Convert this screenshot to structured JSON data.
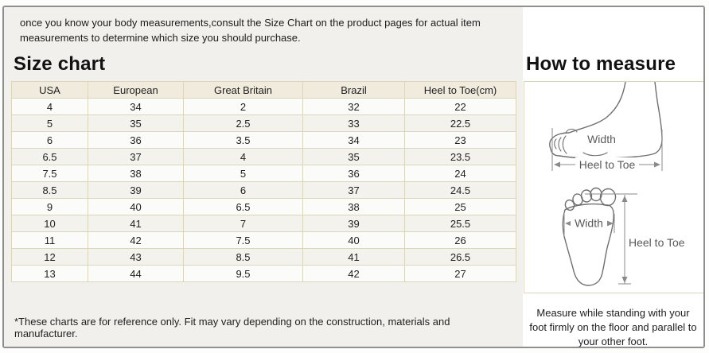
{
  "page": {
    "intro": "once you know your body measurements,consult the Size Chart on the product pages for actual item measurements to determine which size you should purchase.",
    "footnote": "*These charts are for reference only. Fit may vary depending on the construction, materials and manufacturer."
  },
  "size_chart": {
    "title": "Size chart",
    "columns": [
      "USA",
      "European",
      "Great Britain",
      "Brazil",
      "Heel to Toe(cm)"
    ],
    "rows": [
      [
        "4",
        "34",
        "2",
        "32",
        "22"
      ],
      [
        "5",
        "35",
        "2.5",
        "33",
        "22.5"
      ],
      [
        "6",
        "36",
        "3.5",
        "34",
        "23"
      ],
      [
        "6.5",
        "37",
        "4",
        "35",
        "23.5"
      ],
      [
        "7.5",
        "38",
        "5",
        "36",
        "24"
      ],
      [
        "8.5",
        "39",
        "6",
        "37",
        "24.5"
      ],
      [
        "9",
        "40",
        "6.5",
        "38",
        "25"
      ],
      [
        "10",
        "41",
        "7",
        "39",
        "25.5"
      ],
      [
        "11",
        "42",
        "7.5",
        "40",
        "26"
      ],
      [
        "12",
        "43",
        "8.5",
        "41",
        "26.5"
      ],
      [
        "13",
        "44",
        "9.5",
        "42",
        "27"
      ]
    ]
  },
  "how_to_measure": {
    "title": "How to measure",
    "side_diagram": {
      "width_label": "Width",
      "length_label": "Heel to Toe"
    },
    "sole_diagram": {
      "width_label": "Width",
      "length_label": "Heel to Toe"
    },
    "note": "Measure while standing with your foot firmly on the floor and parallel to your other foot."
  },
  "colors": {
    "frame_border": "#8f8f8f",
    "left_panel_bg": "#f1f0ec",
    "right_panel_bg": "#ffffff",
    "table_border": "#d9d6bc",
    "header_bg": "#f0ebdc",
    "row_odd_bg": "#fbfbfa",
    "row_even_bg": "#f3f2ed",
    "diagram_line": "#6f6f6f",
    "diagram_text": "#5a5a5a",
    "text": "#1c1c1c"
  }
}
